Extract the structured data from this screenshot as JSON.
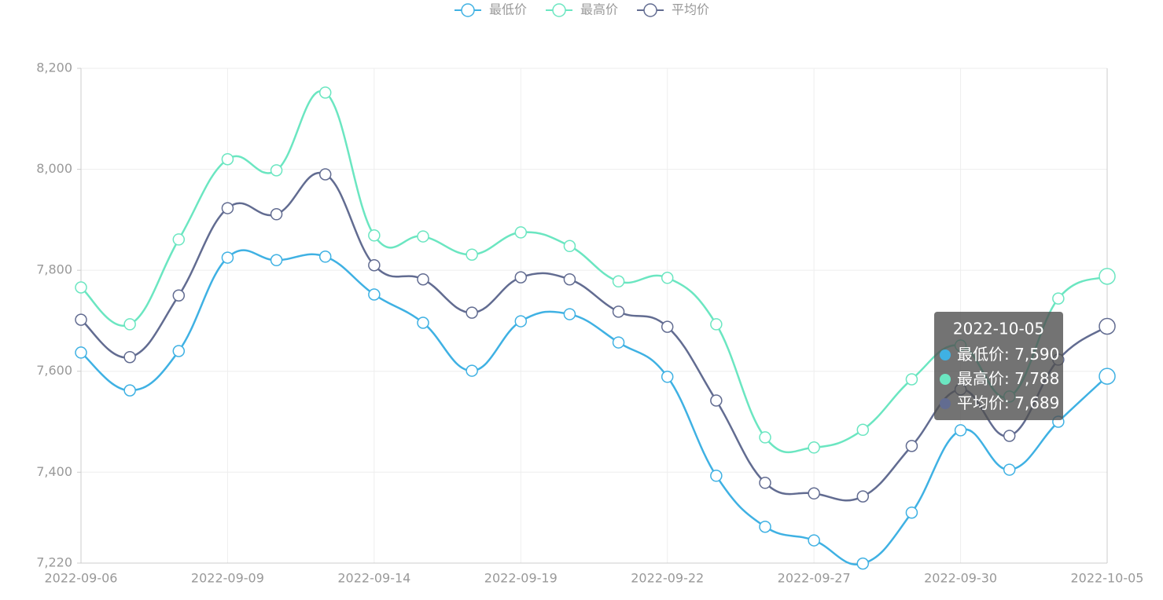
{
  "chart_data": {
    "type": "line",
    "categories": [
      "2022-09-06",
      null,
      null,
      "2022-09-09",
      null,
      null,
      "2022-09-14",
      null,
      null,
      "2022-09-19",
      null,
      null,
      "2022-09-22",
      null,
      null,
      "2022-09-27",
      null,
      null,
      "2022-09-30",
      null,
      null,
      "2022-10-05"
    ],
    "series": [
      {
        "name": "最低价",
        "color": "#3fb1e3",
        "values": [
          7637,
          7562,
          7640,
          7825,
          7820,
          7827,
          7752,
          7696,
          7601,
          7699,
          7713,
          7657,
          7589,
          7393,
          7292,
          7265,
          7219,
          7320,
          7483,
          7405,
          7500,
          7590
        ]
      },
      {
        "name": "最高价",
        "color": "#6be6c1",
        "values": [
          7766,
          7693,
          7861,
          8020,
          7998,
          8152,
          7869,
          7867,
          7831,
          7875,
          7848,
          7778,
          7785,
          7693,
          7469,
          7449,
          7484,
          7584,
          7651,
          7550,
          7744,
          7788
        ]
      },
      {
        "name": "平均价",
        "color": "#626c91",
        "values": [
          7702,
          7628,
          7750,
          7923,
          7911,
          7990,
          7810,
          7782,
          7716,
          7786,
          7782,
          7718,
          7688,
          7542,
          7379,
          7358,
          7352,
          7452,
          7564,
          7472,
          7623,
          7689
        ]
      }
    ],
    "ylim": [
      7220,
      8200
    ],
    "yticks": [
      {
        "value": 7220,
        "label": "7,220"
      },
      {
        "value": 7400,
        "label": "7,400"
      },
      {
        "value": 7600,
        "label": "7,600"
      },
      {
        "value": 7800,
        "label": "7,800"
      },
      {
        "value": 8000,
        "label": "8,000"
      },
      {
        "value": 8200,
        "label": "8,200"
      }
    ],
    "grid": true,
    "smooth": true,
    "legend": "top",
    "tooltip": {
      "value_labels": [
        "7,590",
        "7,788",
        "7,689"
      ]
    }
  }
}
